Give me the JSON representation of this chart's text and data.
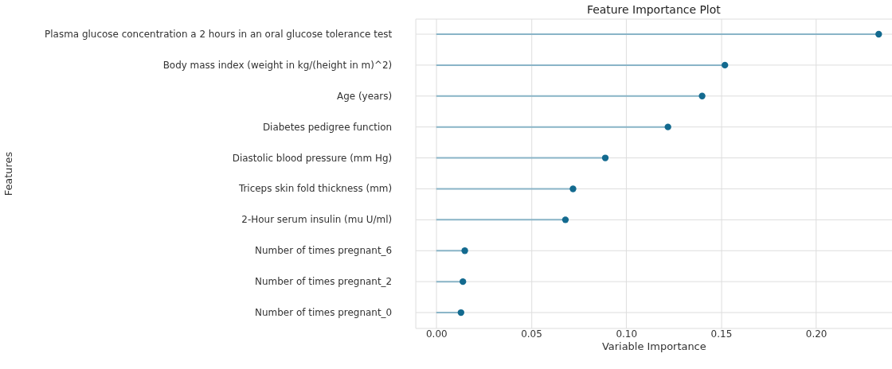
{
  "chart_data": {
    "type": "lollipop",
    "orientation": "horizontal",
    "title": "Feature Importance Plot",
    "xlabel": "Variable Importance",
    "ylabel": "Features",
    "categories": [
      "Plasma glucose concentration a 2 hours in an oral glucose tolerance test",
      "Body mass index (weight in kg/(height in m)^2)",
      "Age (years)",
      "Diabetes pedigree function",
      "Diastolic blood pressure (mm Hg)",
      "Triceps skin fold thickness (mm)",
      "2-Hour serum insulin (mu U/ml)",
      "Number of times pregnant_6",
      "Number of times pregnant_2",
      "Number of times pregnant_0"
    ],
    "series": [
      {
        "color": "#136a8f",
        "values": [
          0.233,
          0.152,
          0.14,
          0.122,
          0.089,
          0.072,
          0.068,
          0.015,
          0.014,
          0.013
        ]
      }
    ],
    "xlim": [
      -0.011,
      0.24
    ],
    "xticks": [
      {
        "value": 0,
        "label": "0.00"
      },
      {
        "value": 0.05,
        "label": "0.05"
      },
      {
        "value": 0.1,
        "label": "0.10"
      },
      {
        "value": 0.15,
        "label": "0.15"
      },
      {
        "value": 0.2,
        "label": "0.20"
      }
    ],
    "grid": true,
    "legend": false,
    "marker": "circle"
  }
}
